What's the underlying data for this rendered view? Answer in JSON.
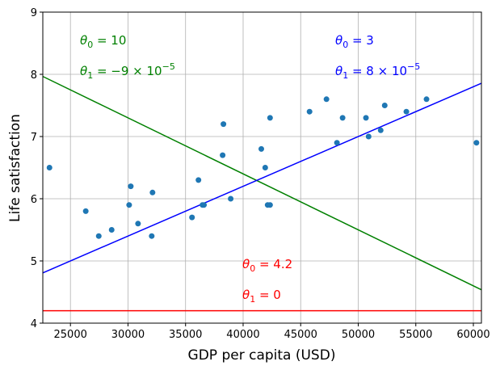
{
  "chart_data": {
    "type": "scatter",
    "xlabel": "GDP per capita (USD)",
    "ylabel": "Life satisfaction",
    "xlim": [
      22600,
      60700
    ],
    "ylim": [
      4,
      9
    ],
    "grid": true,
    "xticks": [
      25000,
      30000,
      35000,
      40000,
      45000,
      50000,
      55000,
      60000
    ],
    "yticks": [
      4,
      5,
      6,
      7,
      8,
      9
    ],
    "point_color": "#1f77b4",
    "points": [
      [
        23180,
        6.5
      ],
      [
        26330,
        5.8
      ],
      [
        27460,
        5.4
      ],
      [
        28580,
        5.5
      ],
      [
        30100,
        5.9
      ],
      [
        30240,
        6.2
      ],
      [
        30870,
        5.6
      ],
      [
        32060,
        5.4
      ],
      [
        32130,
        6.1
      ],
      [
        35560,
        5.7
      ],
      [
        36120,
        6.3
      ],
      [
        36470,
        5.9
      ],
      [
        36600,
        5.9
      ],
      [
        38220,
        6.7
      ],
      [
        38290,
        7.2
      ],
      [
        38920,
        6.0
      ],
      [
        41580,
        6.8
      ],
      [
        41920,
        6.5
      ],
      [
        42130,
        5.9
      ],
      [
        42340,
        5.9
      ],
      [
        42340,
        7.3
      ],
      [
        45770,
        7.4
      ],
      [
        47240,
        7.6
      ],
      [
        48150,
        6.9
      ],
      [
        48640,
        7.3
      ],
      [
        50670,
        7.3
      ],
      [
        50900,
        7.0
      ],
      [
        51950,
        7.1
      ],
      [
        52300,
        7.5
      ],
      [
        54180,
        7.4
      ],
      [
        55930,
        7.6
      ],
      [
        60270,
        6.9
      ]
    ],
    "lines": [
      {
        "theta0": 10,
        "theta1": -9e-05,
        "color": "#008000",
        "labels": [
          {
            "sym": "θ",
            "sub": "0",
            "val": " = 10",
            "sup": ""
          },
          {
            "sym": "θ",
            "sub": "1",
            "val": " = −9 × 10",
            "sup": "−5"
          }
        ]
      },
      {
        "theta0": 3,
        "theta1": 8e-05,
        "color": "#0000ff",
        "labels": [
          {
            "sym": "θ",
            "sub": "0",
            "val": " = 3",
            "sup": ""
          },
          {
            "sym": "θ",
            "sub": "1",
            "val": " = 8 × 10",
            "sup": "−5"
          }
        ]
      },
      {
        "theta0": 4.2,
        "theta1": 0,
        "color": "#ff0000",
        "labels": [
          {
            "sym": "θ",
            "sub": "0",
            "val": " = 4.2",
            "sup": ""
          },
          {
            "sym": "θ",
            "sub": "1",
            "val": " = 0",
            "sup": ""
          }
        ]
      }
    ]
  }
}
